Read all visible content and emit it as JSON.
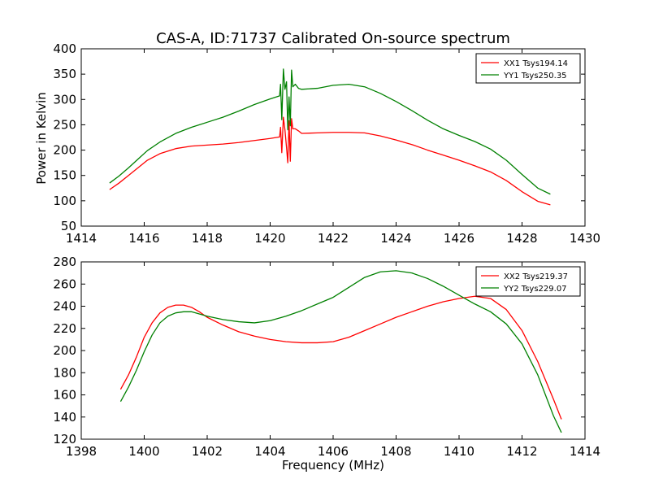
{
  "figure": {
    "title": "CAS-A, ID:71737 Calibrated On-source spectrum",
    "xlabel": "Frequency (MHz)"
  },
  "chart_data": [
    {
      "type": "line",
      "ylabel": "Power in Kelvin",
      "xlim": [
        1414,
        1430
      ],
      "ylim": [
        50,
        400
      ],
      "xticks": [
        1414,
        1416,
        1418,
        1420,
        1422,
        1424,
        1426,
        1428,
        1430
      ],
      "yticks": [
        50,
        100,
        150,
        200,
        250,
        300,
        350,
        400
      ],
      "legend": "top-right",
      "series": [
        {
          "name": "XX1 Tsys194.14",
          "color": "#ff0000",
          "points": [
            [
              1414.9,
              122
            ],
            [
              1415.2,
              135
            ],
            [
              1415.5,
              150
            ],
            [
              1415.8,
              165
            ],
            [
              1416.1,
              180
            ],
            [
              1416.5,
              193
            ],
            [
              1417.0,
              203
            ],
            [
              1417.5,
              208
            ],
            [
              1418.0,
              210
            ],
            [
              1418.5,
              212
            ],
            [
              1419.0,
              215
            ],
            [
              1419.5,
              219
            ],
            [
              1420.0,
              223
            ],
            [
              1420.3,
              226
            ],
            [
              1420.33,
              245
            ],
            [
              1420.37,
              195
            ],
            [
              1420.42,
              265
            ],
            [
              1420.47,
              240
            ],
            [
              1420.52,
              205
            ],
            [
              1420.56,
              175
            ],
            [
              1420.6,
              258
            ],
            [
              1420.64,
              178
            ],
            [
              1420.68,
              262
            ],
            [
              1420.72,
              242
            ],
            [
              1420.8,
              242
            ],
            [
              1420.9,
              238
            ],
            [
              1421.0,
              233
            ],
            [
              1421.5,
              234
            ],
            [
              1422.0,
              235
            ],
            [
              1422.5,
              235
            ],
            [
              1423.0,
              234
            ],
            [
              1423.5,
              228
            ],
            [
              1424.0,
              220
            ],
            [
              1424.5,
              211
            ],
            [
              1425.0,
              200
            ],
            [
              1425.5,
              190
            ],
            [
              1426.0,
              180
            ],
            [
              1426.5,
              169
            ],
            [
              1427.0,
              157
            ],
            [
              1427.5,
              140
            ],
            [
              1428.0,
              118
            ],
            [
              1428.5,
              99
            ],
            [
              1428.9,
              92
            ]
          ]
        },
        {
          "name": "YY1 Tsys250.35",
          "color": "#008000",
          "points": [
            [
              1414.9,
              135
            ],
            [
              1415.2,
              149
            ],
            [
              1415.5,
              165
            ],
            [
              1415.8,
              182
            ],
            [
              1416.1,
              199
            ],
            [
              1416.5,
              216
            ],
            [
              1417.0,
              233
            ],
            [
              1417.5,
              245
            ],
            [
              1418.0,
              255
            ],
            [
              1418.5,
              265
            ],
            [
              1419.0,
              277
            ],
            [
              1419.5,
              290
            ],
            [
              1420.0,
              301
            ],
            [
              1420.3,
              307
            ],
            [
              1420.33,
              330
            ],
            [
              1420.37,
              260
            ],
            [
              1420.42,
              360
            ],
            [
              1420.47,
              320
            ],
            [
              1420.52,
              335
            ],
            [
              1420.56,
              240
            ],
            [
              1420.6,
              305
            ],
            [
              1420.64,
              248
            ],
            [
              1420.68,
              358
            ],
            [
              1420.72,
              325
            ],
            [
              1420.8,
              330
            ],
            [
              1420.9,
              322
            ],
            [
              1421.0,
              320
            ],
            [
              1421.5,
              322
            ],
            [
              1422.0,
              328
            ],
            [
              1422.5,
              330
            ],
            [
              1423.0,
              325
            ],
            [
              1423.5,
              312
            ],
            [
              1424.0,
              296
            ],
            [
              1424.5,
              278
            ],
            [
              1425.0,
              259
            ],
            [
              1425.5,
              242
            ],
            [
              1426.0,
              229
            ],
            [
              1426.5,
              217
            ],
            [
              1427.0,
              202
            ],
            [
              1427.5,
              180
            ],
            [
              1428.0,
              152
            ],
            [
              1428.5,
              125
            ],
            [
              1428.9,
              113
            ]
          ]
        }
      ]
    },
    {
      "type": "line",
      "ylabel": "",
      "xlim": [
        1398,
        1414
      ],
      "ylim": [
        120,
        280
      ],
      "xticks": [
        1398,
        1400,
        1402,
        1404,
        1406,
        1408,
        1410,
        1412,
        1414
      ],
      "yticks": [
        120,
        140,
        160,
        180,
        200,
        220,
        240,
        260,
        280
      ],
      "legend": "top-right",
      "series": [
        {
          "name": "XX2 Tsys219.37",
          "color": "#ff0000",
          "points": [
            [
              1399.25,
              165
            ],
            [
              1399.5,
              178
            ],
            [
              1399.75,
              194
            ],
            [
              1400.0,
              212
            ],
            [
              1400.25,
              225
            ],
            [
              1400.5,
              234
            ],
            [
              1400.75,
              239
            ],
            [
              1401.0,
              241
            ],
            [
              1401.25,
              241
            ],
            [
              1401.5,
              239
            ],
            [
              1401.75,
              235
            ],
            [
              1402.0,
              230
            ],
            [
              1402.5,
              223
            ],
            [
              1403.0,
              217
            ],
            [
              1403.5,
              213
            ],
            [
              1404.0,
              210
            ],
            [
              1404.5,
              208
            ],
            [
              1405.0,
              207
            ],
            [
              1405.5,
              207
            ],
            [
              1406.0,
              208
            ],
            [
              1406.5,
              212
            ],
            [
              1407.0,
              218
            ],
            [
              1407.5,
              224
            ],
            [
              1408.0,
              230
            ],
            [
              1408.5,
              235
            ],
            [
              1409.0,
              240
            ],
            [
              1409.5,
              244
            ],
            [
              1410.0,
              247
            ],
            [
              1410.5,
              249
            ],
            [
              1411.0,
              247
            ],
            [
              1411.5,
              237
            ],
            [
              1412.0,
              218
            ],
            [
              1412.5,
              190
            ],
            [
              1413.0,
              156
            ],
            [
              1413.25,
              138
            ]
          ]
        },
        {
          "name": "YY2 Tsys229.07",
          "color": "#008000",
          "points": [
            [
              1399.25,
              154
            ],
            [
              1399.5,
              167
            ],
            [
              1399.75,
              182
            ],
            [
              1400.0,
              199
            ],
            [
              1400.25,
              214
            ],
            [
              1400.5,
              225
            ],
            [
              1400.75,
              231
            ],
            [
              1401.0,
              234
            ],
            [
              1401.25,
              235
            ],
            [
              1401.5,
              235
            ],
            [
              1401.75,
              233
            ],
            [
              1402.0,
              231
            ],
            [
              1402.5,
              228
            ],
            [
              1403.0,
              226
            ],
            [
              1403.5,
              225
            ],
            [
              1404.0,
              227
            ],
            [
              1404.5,
              231
            ],
            [
              1405.0,
              236
            ],
            [
              1405.5,
              242
            ],
            [
              1406.0,
              248
            ],
            [
              1406.5,
              257
            ],
            [
              1407.0,
              266
            ],
            [
              1407.5,
              271
            ],
            [
              1408.0,
              272
            ],
            [
              1408.5,
              270
            ],
            [
              1409.0,
              265
            ],
            [
              1409.5,
              258
            ],
            [
              1410.0,
              250
            ],
            [
              1410.5,
              242
            ],
            [
              1411.0,
              235
            ],
            [
              1411.5,
              224
            ],
            [
              1412.0,
              206
            ],
            [
              1412.5,
              178
            ],
            [
              1413.0,
              141
            ],
            [
              1413.25,
              126
            ]
          ]
        }
      ]
    }
  ]
}
